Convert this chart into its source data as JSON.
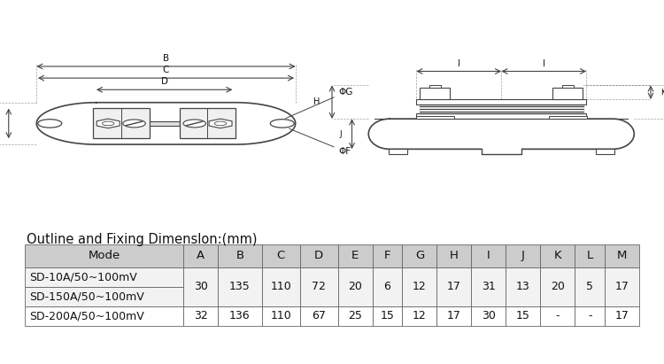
{
  "title": "Outline and Fixing Dimenslon:(mm)",
  "bg_color": "#ffffff",
  "table_header": [
    "Mode",
    "A",
    "B",
    "C",
    "D",
    "E",
    "F",
    "G",
    "H",
    "I",
    "J",
    "K",
    "L",
    "M"
  ],
  "table_rows": [
    [
      "SD-10A/50~100mV",
      "30",
      "135",
      "110",
      "72",
      "20",
      "6",
      "12",
      "17",
      "31",
      "13",
      "20",
      "5",
      "17"
    ],
    [
      "SD-150A/50~100mV",
      "30",
      "135",
      "110",
      "72",
      "20",
      "6",
      "12",
      "17",
      "31",
      "13",
      "20",
      "5",
      "17"
    ],
    [
      "SD-200A/50~100mV",
      "32",
      "136",
      "110",
      "67",
      "25",
      "15",
      "12",
      "17",
      "30",
      "15",
      "-",
      "-",
      "17"
    ]
  ],
  "col_widths": [
    1.75,
    0.38,
    0.48,
    0.42,
    0.42,
    0.38,
    0.33,
    0.38,
    0.38,
    0.38,
    0.38,
    0.38,
    0.33,
    0.38
  ],
  "header_bg": "#cccccc",
  "row_bg_merged": "#f2f2f2",
  "row_bg_last": "#ffffff",
  "border_color": "#666666",
  "text_color": "#111111",
  "lc": "#444444",
  "title_fontsize": 10.5,
  "table_fontsize": 9.0
}
